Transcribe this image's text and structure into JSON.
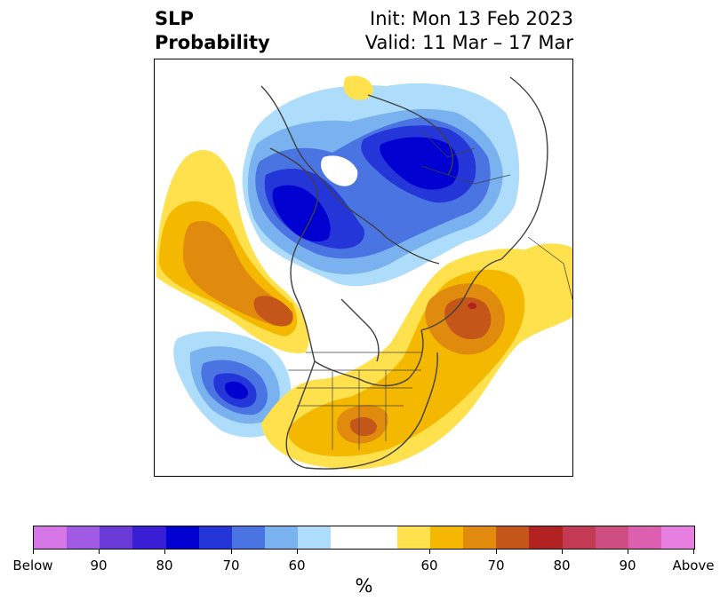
{
  "header": {
    "title_line1": "SLP",
    "title_line2": "Probability",
    "init_text": "Init: Mon 13 Feb 2023",
    "valid_text": "Valid: 11 Mar – 17 Mar"
  },
  "colorbar": {
    "colors": [
      "#d675e6",
      "#a05ae3",
      "#6a3ad9",
      "#3a1ed6",
      "#0000d0",
      "#2436d8",
      "#4a74e2",
      "#7ab2f0",
      "#aedcfb",
      "#ffffff",
      "#ffffff",
      "#ffe14d",
      "#f5b800",
      "#e08b0e",
      "#c4561a",
      "#b22222",
      "#c23a53",
      "#cf4e82",
      "#dc5fb0",
      "#e67fe0"
    ],
    "tick_labels": [
      "Below",
      "90",
      "80",
      "70",
      "60",
      "60",
      "70",
      "80",
      "90",
      "Above"
    ],
    "label": "%"
  },
  "map": {
    "fill_colors": {
      "below_light": "#aedcfb",
      "below_mid": "#7ab2f0",
      "below_60": "#4a74e2",
      "below_70": "#2436d8",
      "below_80": "#0000d0",
      "above_light": "#ffe14d",
      "above_mid": "#f5b800",
      "above_70": "#e08b0e",
      "above_high": "#c4561a",
      "above_80": "#b22222"
    }
  }
}
